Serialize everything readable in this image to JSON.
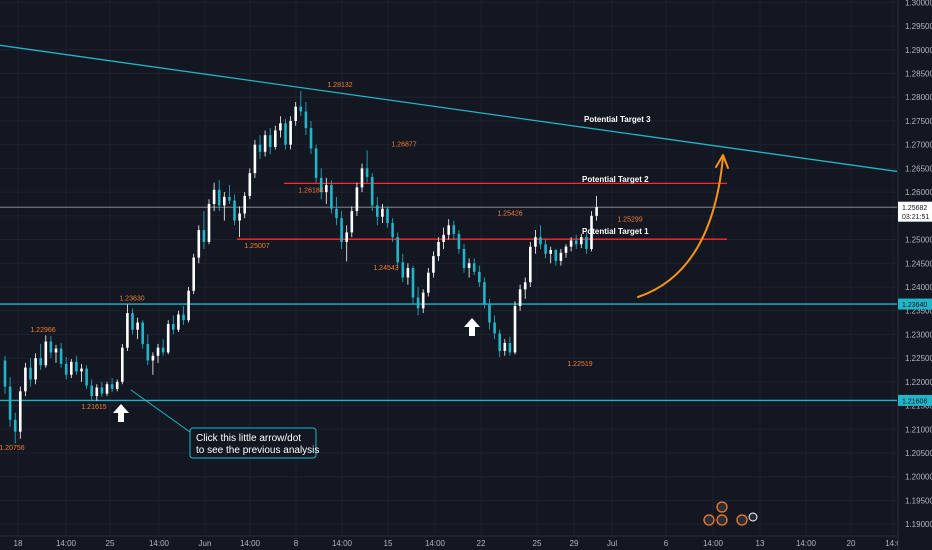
{
  "chart_data": {
    "type": "candlestick",
    "y_axis": {
      "min": 1.1875,
      "max": 1.3005,
      "ticks": [
        "1.30000",
        "1.29500",
        "1.29000",
        "1.28500",
        "1.28000",
        "1.27500",
        "1.27000",
        "1.26500",
        "1.26000",
        "1.25500",
        "1.25000",
        "1.24500",
        "1.24000",
        "1.23500",
        "1.23000",
        "1.22500",
        "1.22000",
        "1.21500",
        "1.21000",
        "1.20500",
        "1.20000",
        "1.19500",
        "1.19000"
      ]
    },
    "x_axis": {
      "labels": [
        "18",
        "14:00",
        "25",
        "14:00",
        "Jun",
        "14:00",
        "8",
        "14:00",
        "15",
        "14:00",
        "22",
        "25",
        "29",
        "Jul",
        "6",
        "14:00",
        "13",
        "14:00",
        "20",
        "14:0"
      ]
    },
    "price_badges": [
      {
        "value": 1.25682,
        "label": "1.25682",
        "sublabel": "03:21:51",
        "color": "#ffffff",
        "text_color": "#131722"
      },
      {
        "value": 1.2364,
        "label": "1.23640",
        "color": "#22b5c8",
        "text_color": "#131722"
      },
      {
        "value": 1.21608,
        "label": "1.21608",
        "color": "#22b5c8",
        "text_color": "#131722"
      }
    ],
    "horizontal_lines": [
      {
        "value": 1.25682,
        "color": "#9598a1",
        "width": 0.8,
        "from": "left"
      },
      {
        "value": 1.2364,
        "color": "#22b5c8",
        "width": 1.3,
        "from": "left"
      },
      {
        "value": 1.21608,
        "color": "#22b5c8",
        "width": 1.3,
        "from": "left"
      },
      {
        "value": 1.26184,
        "color": "#ff2a2a",
        "width": 1.3,
        "from_label": "Jun"
      },
      {
        "value": 1.25007,
        "color": "#ff2a2a",
        "width": 1.3,
        "from_label": "Jun"
      }
    ],
    "trend_line": {
      "start": 1.29095,
      "end": 1.26436,
      "color": "#22b5c8"
    },
    "highs_lows": [
      {
        "label": "1.28132",
        "value": 1.28132,
        "pos": "above"
      },
      {
        "label": "1.26877",
        "value": 1.26877,
        "pos": "above"
      },
      {
        "label": "1.25426",
        "value": 1.25426,
        "pos": "above"
      },
      {
        "label": "1.25299",
        "value": 1.25299,
        "pos": "above"
      },
      {
        "label": "1.23630",
        "value": 1.2363,
        "pos": "above"
      },
      {
        "label": "1.22966",
        "value": 1.22966,
        "pos": "above"
      },
      {
        "label": "1.26184",
        "value": 1.26184,
        "pos": "below"
      },
      {
        "label": "1.25007",
        "value": 1.25007,
        "pos": "below"
      },
      {
        "label": "1.24543",
        "value": 1.24543,
        "pos": "below"
      },
      {
        "label": "1.21615",
        "value": 1.21615,
        "pos": "below"
      },
      {
        "label": "1.22519",
        "value": 1.22519,
        "pos": "below"
      },
      {
        "label": "1.20756",
        "value": 1.20756,
        "pos": "below"
      }
    ],
    "annotations": {
      "targets": [
        "Potential Target 3",
        "Potential Target 2",
        "Potential Target 1"
      ],
      "callout": [
        "Click this little arrow/dot",
        "to see the previous analysis"
      ]
    },
    "colors": {
      "background": "#131722",
      "up_candle": "#ffffff",
      "down_candle": "#22b5c8",
      "grid": "#1e2230",
      "projection_arrow": "#f7931a",
      "level_label": "#f57c2c"
    },
    "candles": [
      [
        1.2245,
        1.2255,
        1.2175,
        1.219
      ],
      [
        1.219,
        1.221,
        1.2105,
        1.212
      ],
      [
        1.212,
        1.2135,
        1.207,
        1.2095
      ],
      [
        1.2095,
        1.219,
        1.208,
        1.218
      ],
      [
        1.218,
        1.224,
        1.217,
        1.223
      ],
      [
        1.223,
        1.225,
        1.219,
        1.2205
      ],
      [
        1.2205,
        1.226,
        1.2195,
        1.225
      ],
      [
        1.225,
        1.228,
        1.2225,
        1.2235
      ],
      [
        1.2235,
        1.2298,
        1.223,
        1.2285
      ],
      [
        1.2285,
        1.2297,
        1.225,
        1.2262
      ],
      [
        1.2262,
        1.2278,
        1.224,
        1.227
      ],
      [
        1.227,
        1.2282,
        1.223,
        1.2238
      ],
      [
        1.2238,
        1.2252,
        1.2205,
        1.2215
      ],
      [
        1.2215,
        1.2248,
        1.2208,
        1.2242
      ],
      [
        1.2242,
        1.2255,
        1.2215,
        1.2222
      ],
      [
        1.2222,
        1.2238,
        1.22,
        1.2228
      ],
      [
        1.2228,
        1.2235,
        1.2185,
        1.2192
      ],
      [
        1.2192,
        1.2205,
        1.2162,
        1.217
      ],
      [
        1.217,
        1.2195,
        1.216,
        1.2188
      ],
      [
        1.2188,
        1.22,
        1.2168,
        1.2175
      ],
      [
        1.2175,
        1.22,
        1.217,
        1.2195
      ],
      [
        1.2195,
        1.2208,
        1.2178,
        1.2185
      ],
      [
        1.2185,
        1.2205,
        1.218,
        1.22
      ],
      [
        1.22,
        1.228,
        1.2195,
        1.2272
      ],
      [
        1.2272,
        1.2363,
        1.2265,
        1.2345
      ],
      [
        1.2345,
        1.2355,
        1.23,
        1.231
      ],
      [
        1.231,
        1.2335,
        1.229,
        1.2325
      ],
      [
        1.2325,
        1.233,
        1.227,
        1.228
      ],
      [
        1.228,
        1.23,
        1.2235,
        1.2245
      ],
      [
        1.2245,
        1.2262,
        1.2215,
        1.2255
      ],
      [
        1.2255,
        1.228,
        1.224,
        1.2272
      ],
      [
        1.2272,
        1.229,
        1.2255,
        1.2262
      ],
      [
        1.2262,
        1.233,
        1.2258,
        1.2322
      ],
      [
        1.2322,
        1.234,
        1.23,
        1.231
      ],
      [
        1.231,
        1.235,
        1.2305,
        1.2342
      ],
      [
        1.2342,
        1.236,
        1.232,
        1.233
      ],
      [
        1.233,
        1.24,
        1.2325,
        1.2392
      ],
      [
        1.2392,
        1.247,
        1.2385,
        1.2462
      ],
      [
        1.2462,
        1.253,
        1.245,
        1.252
      ],
      [
        1.252,
        1.256,
        1.248,
        1.2495
      ],
      [
        1.2495,
        1.2585,
        1.249,
        1.2575
      ],
      [
        1.2575,
        1.262,
        1.256,
        1.2605
      ],
      [
        1.2605,
        1.2625,
        1.256,
        1.2572
      ],
      [
        1.2572,
        1.26,
        1.254,
        1.259
      ],
      [
        1.259,
        1.2615,
        1.2575,
        1.2582
      ],
      [
        1.2582,
        1.2595,
        1.253,
        1.254
      ],
      [
        1.254,
        1.257,
        1.2505,
        1.2555
      ],
      [
        1.2555,
        1.26,
        1.2545,
        1.2592
      ],
      [
        1.2592,
        1.265,
        1.2585,
        1.264
      ],
      [
        1.264,
        1.271,
        1.263,
        1.27
      ],
      [
        1.27,
        1.272,
        1.267,
        1.2685
      ],
      [
        1.2685,
        1.273,
        1.2675,
        1.272
      ],
      [
        1.272,
        1.2735,
        1.268,
        1.2695
      ],
      [
        1.2695,
        1.274,
        1.269,
        1.273
      ],
      [
        1.273,
        1.276,
        1.2715,
        1.2745
      ],
      [
        1.2745,
        1.2755,
        1.269,
        1.27
      ],
      [
        1.27,
        1.276,
        1.269,
        1.275
      ],
      [
        1.275,
        1.279,
        1.274,
        1.278
      ],
      [
        1.278,
        1.2813,
        1.276,
        1.277
      ],
      [
        1.277,
        1.279,
        1.272,
        1.2735
      ],
      [
        1.2735,
        1.275,
        1.268,
        1.2692
      ],
      [
        1.2692,
        1.27,
        1.262,
        1.263
      ],
      [
        1.263,
        1.265,
        1.2585,
        1.26
      ],
      [
        1.26,
        1.263,
        1.2575,
        1.2615
      ],
      [
        1.2615,
        1.2625,
        1.2555,
        1.2565
      ],
      [
        1.2565,
        1.259,
        1.253,
        1.2545
      ],
      [
        1.2545,
        1.256,
        1.248,
        1.2495
      ],
      [
        1.2495,
        1.253,
        1.2454,
        1.2515
      ],
      [
        1.2515,
        1.257,
        1.2505,
        1.256
      ],
      [
        1.256,
        1.262,
        1.255,
        1.261
      ],
      [
        1.261,
        1.266,
        1.26,
        1.265
      ],
      [
        1.265,
        1.2688,
        1.262,
        1.2632
      ],
      [
        1.2632,
        1.264,
        1.256,
        1.2572
      ],
      [
        1.2572,
        1.259,
        1.253,
        1.2548
      ],
      [
        1.2548,
        1.2575,
        1.2535,
        1.2565
      ],
      [
        1.2565,
        1.257,
        1.2525,
        1.2535
      ],
      [
        1.2535,
        1.2545,
        1.2495,
        1.2505
      ],
      [
        1.2505,
        1.2515,
        1.244,
        1.2452
      ],
      [
        1.2452,
        1.247,
        1.241,
        1.242
      ],
      [
        1.242,
        1.245,
        1.2405,
        1.244
      ],
      [
        1.244,
        1.2445,
        1.2365,
        1.2378
      ],
      [
        1.2378,
        1.24,
        1.234,
        1.2355
      ],
      [
        1.2355,
        1.2395,
        1.2345,
        1.2388
      ],
      [
        1.2388,
        1.244,
        1.238,
        1.243
      ],
      [
        1.243,
        1.2475,
        1.242,
        1.2465
      ],
      [
        1.2465,
        1.2505,
        1.2455,
        1.2495
      ],
      [
        1.2495,
        1.2525,
        1.248,
        1.251
      ],
      [
        1.251,
        1.2543,
        1.25,
        1.253
      ],
      [
        1.253,
        1.254,
        1.25,
        1.2512
      ],
      [
        1.2512,
        1.252,
        1.247,
        1.248
      ],
      [
        1.248,
        1.249,
        1.243,
        1.244
      ],
      [
        1.244,
        1.246,
        1.242,
        1.245
      ],
      [
        1.245,
        1.246,
        1.2425,
        1.2432
      ],
      [
        1.2432,
        1.2445,
        1.24,
        1.241
      ],
      [
        1.241,
        1.242,
        1.2355,
        1.2365
      ],
      [
        1.2365,
        1.2375,
        1.231,
        1.2325
      ],
      [
        1.2325,
        1.234,
        1.229,
        1.2302
      ],
      [
        1.2302,
        1.231,
        1.2252,
        1.2265
      ],
      [
        1.2265,
        1.229,
        1.2255,
        1.2282
      ],
      [
        1.2282,
        1.2295,
        1.2255,
        1.2262
      ],
      [
        1.2262,
        1.237,
        1.2258,
        1.236
      ],
      [
        1.236,
        1.2405,
        1.235,
        1.2395
      ],
      [
        1.2395,
        1.242,
        1.2375,
        1.241
      ],
      [
        1.241,
        1.2495,
        1.24,
        1.2485
      ],
      [
        1.2485,
        1.252,
        1.247,
        1.2505
      ],
      [
        1.2505,
        1.253,
        1.248,
        1.249
      ],
      [
        1.249,
        1.25,
        1.246,
        1.247
      ],
      [
        1.247,
        1.2485,
        1.245,
        1.2478
      ],
      [
        1.2478,
        1.248,
        1.2445,
        1.2455
      ],
      [
        1.2455,
        1.248,
        1.2445,
        1.2472
      ],
      [
        1.2472,
        1.249,
        1.2462,
        1.2485
      ],
      [
        1.2485,
        1.2505,
        1.2475,
        1.2498
      ],
      [
        1.2498,
        1.251,
        1.248,
        1.249
      ],
      [
        1.249,
        1.2512,
        1.2482,
        1.2505
      ],
      [
        1.2505,
        1.2515,
        1.247,
        1.248
      ],
      [
        1.248,
        1.256,
        1.2475,
        1.255
      ],
      [
        1.255,
        1.2592,
        1.254,
        1.2568
      ]
    ]
  }
}
